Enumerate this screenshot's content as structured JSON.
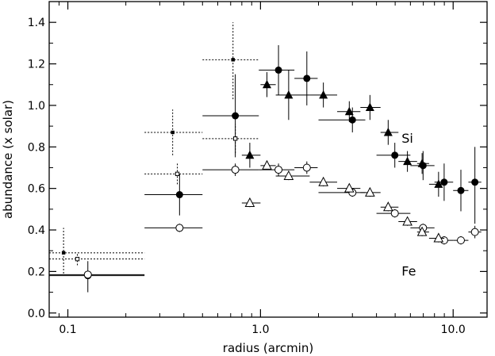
{
  "chart_data": {
    "type": "scatter",
    "xlabel": "radius (arcmin)",
    "ylabel": "abundance  (x solar)",
    "xscale": "log",
    "xlim": [
      0.08,
      15
    ],
    "ylim": [
      -0.02,
      1.5
    ],
    "x_ticks": [
      0.1,
      1.0,
      10.0
    ],
    "x_tick_labels": [
      "0.1",
      "1.0",
      "10.0"
    ],
    "y_ticks": [
      0.0,
      0.2,
      0.4,
      0.6,
      0.8,
      1.0,
      1.2,
      1.4
    ],
    "y_tick_labels": [
      "0.0",
      "0.2",
      "0.4",
      "0.6",
      "0.8",
      "1.0",
      "1.2",
      "1.4"
    ],
    "grid": false,
    "annotations": [
      {
        "text": "Si",
        "x": 5.4,
        "y": 0.82
      },
      {
        "text": "Fe",
        "x": 5.4,
        "y": 0.18
      }
    ],
    "series": [
      {
        "marker": "filled-circle",
        "line": "solid",
        "points": [
          {
            "x": 0.127,
            "y": 0.18,
            "xlo": 0.08,
            "xhi": 0.25,
            "ylo": 0.1,
            "yhi": 0.25
          },
          {
            "x": 0.38,
            "y": 0.57,
            "xlo": 0.25,
            "xhi": 0.5,
            "ylo": 0.47,
            "yhi": 0.67
          },
          {
            "x": 0.74,
            "y": 0.95,
            "xlo": 0.5,
            "xhi": 0.98,
            "ylo": 0.75,
            "yhi": 1.15
          },
          {
            "x": 1.24,
            "y": 1.17,
            "xlo": 0.98,
            "xhi": 1.5,
            "ylo": 1.05,
            "yhi": 1.29
          },
          {
            "x": 1.74,
            "y": 1.13,
            "xlo": 1.5,
            "xhi": 1.98,
            "ylo": 1.0,
            "yhi": 1.26
          },
          {
            "x": 3.0,
            "y": 0.93,
            "xlo": 2.0,
            "xhi": 3.5,
            "ylo": 0.87,
            "yhi": 0.99
          },
          {
            "x": 4.98,
            "y": 0.76,
            "xlo": 4.0,
            "xhi": 6.0,
            "ylo": 0.7,
            "yhi": 0.82
          },
          {
            "x": 6.98,
            "y": 0.71,
            "xlo": 6.0,
            "xhi": 8.0,
            "ylo": 0.64,
            "yhi": 0.78
          },
          {
            "x": 8.98,
            "y": 0.63,
            "xlo": 8.0,
            "xhi": 10.0,
            "ylo": 0.54,
            "yhi": 0.72
          },
          {
            "x": 10.97,
            "y": 0.59,
            "xlo": 10.0,
            "xhi": 12.0,
            "ylo": 0.49,
            "yhi": 0.69
          },
          {
            "x": 12.97,
            "y": 0.63,
            "xlo": 12.0,
            "xhi": 14.0,
            "ylo": 0.43,
            "yhi": 0.8
          }
        ]
      },
      {
        "marker": "filled-triangle",
        "line": "solid",
        "points": [
          {
            "x": 0.88,
            "y": 0.76,
            "xlo": 0.8,
            "xhi": 1.0,
            "ylo": 0.7,
            "yhi": 0.82
          },
          {
            "x": 1.08,
            "y": 1.1,
            "xlo": 1.0,
            "xhi": 1.2,
            "ylo": 1.04,
            "yhi": 1.16
          },
          {
            "x": 1.4,
            "y": 1.05,
            "xlo": 1.2,
            "xhi": 1.8,
            "ylo": 0.93,
            "yhi": 1.17
          },
          {
            "x": 2.12,
            "y": 1.05,
            "xlo": 1.8,
            "xhi": 2.5,
            "ylo": 0.99,
            "yhi": 1.11
          },
          {
            "x": 2.89,
            "y": 0.97,
            "xlo": 2.5,
            "xhi": 3.3,
            "ylo": 0.92,
            "yhi": 1.02
          },
          {
            "x": 3.7,
            "y": 0.99,
            "xlo": 3.3,
            "xhi": 4.2,
            "ylo": 0.93,
            "yhi": 1.05
          },
          {
            "x": 4.6,
            "y": 0.87,
            "xlo": 4.2,
            "xhi": 5.2,
            "ylo": 0.81,
            "yhi": 0.93
          },
          {
            "x": 5.79,
            "y": 0.73,
            "xlo": 5.2,
            "xhi": 6.5,
            "ylo": 0.68,
            "yhi": 0.78
          },
          {
            "x": 6.9,
            "y": 0.72,
            "xlo": 6.5,
            "xhi": 7.5,
            "ylo": 0.67,
            "yhi": 0.77
          },
          {
            "x": 8.4,
            "y": 0.62,
            "xlo": 7.5,
            "xhi": 9.0,
            "ylo": 0.56,
            "yhi": 0.68
          }
        ]
      },
      {
        "marker": "open-circle",
        "line": "solid",
        "points": [
          {
            "x": 0.127,
            "y": 0.185,
            "xlo": 0.08,
            "xhi": 0.25,
            "ylo": 0.17,
            "yhi": 0.2
          },
          {
            "x": 0.38,
            "y": 0.41,
            "xlo": 0.25,
            "xhi": 0.5,
            "ylo": 0.39,
            "yhi": 0.43
          },
          {
            "x": 0.74,
            "y": 0.69,
            "xlo": 0.5,
            "xhi": 0.98,
            "ylo": 0.66,
            "yhi": 0.72
          },
          {
            "x": 1.24,
            "y": 0.69,
            "xlo": 0.98,
            "xhi": 1.5,
            "ylo": 0.66,
            "yhi": 0.72
          },
          {
            "x": 1.74,
            "y": 0.7,
            "xlo": 1.5,
            "xhi": 1.98,
            "ylo": 0.67,
            "yhi": 0.73
          },
          {
            "x": 3.0,
            "y": 0.58,
            "xlo": 2.0,
            "xhi": 3.5,
            "ylo": 0.56,
            "yhi": 0.6
          },
          {
            "x": 4.98,
            "y": 0.48,
            "xlo": 4.0,
            "xhi": 6.0,
            "ylo": 0.46,
            "yhi": 0.5
          },
          {
            "x": 6.98,
            "y": 0.41,
            "xlo": 6.0,
            "xhi": 8.0,
            "ylo": 0.39,
            "yhi": 0.43
          },
          {
            "x": 8.98,
            "y": 0.35,
            "xlo": 8.0,
            "xhi": 10.0,
            "ylo": 0.33,
            "yhi": 0.37
          },
          {
            "x": 10.97,
            "y": 0.35,
            "xlo": 10.0,
            "xhi": 12.0,
            "ylo": 0.33,
            "yhi": 0.37
          },
          {
            "x": 12.97,
            "y": 0.39,
            "xlo": 12.0,
            "xhi": 14.0,
            "ylo": 0.36,
            "yhi": 0.42
          }
        ]
      },
      {
        "marker": "open-triangle",
        "line": "solid",
        "points": [
          {
            "x": 0.88,
            "y": 0.53,
            "xlo": 0.8,
            "xhi": 1.0,
            "ylo": 0.51,
            "yhi": 0.55
          },
          {
            "x": 1.08,
            "y": 0.71,
            "xlo": 1.0,
            "xhi": 1.2,
            "ylo": 0.69,
            "yhi": 0.73
          },
          {
            "x": 1.4,
            "y": 0.66,
            "xlo": 1.2,
            "xhi": 1.8,
            "ylo": 0.64,
            "yhi": 0.68
          },
          {
            "x": 2.12,
            "y": 0.63,
            "xlo": 1.8,
            "xhi": 2.5,
            "ylo": 0.61,
            "yhi": 0.65
          },
          {
            "x": 2.89,
            "y": 0.6,
            "xlo": 2.5,
            "xhi": 3.3,
            "ylo": 0.58,
            "yhi": 0.62
          },
          {
            "x": 3.7,
            "y": 0.58,
            "xlo": 3.3,
            "xhi": 4.2,
            "ylo": 0.56,
            "yhi": 0.6
          },
          {
            "x": 4.6,
            "y": 0.51,
            "xlo": 4.2,
            "xhi": 5.2,
            "ylo": 0.49,
            "yhi": 0.53
          },
          {
            "x": 5.79,
            "y": 0.44,
            "xlo": 5.2,
            "xhi": 6.5,
            "ylo": 0.42,
            "yhi": 0.46
          },
          {
            "x": 6.9,
            "y": 0.39,
            "xlo": 6.5,
            "xhi": 7.5,
            "ylo": 0.37,
            "yhi": 0.41
          },
          {
            "x": 8.4,
            "y": 0.36,
            "xlo": 7.5,
            "xhi": 9.0,
            "ylo": 0.34,
            "yhi": 0.38
          }
        ]
      },
      {
        "marker": "filled-square-small",
        "line": "dotted",
        "points": [
          {
            "x": 0.095,
            "y": 0.29,
            "xlo": 0.08,
            "xhi": 0.25,
            "ylo": 0.19,
            "yhi": 0.41
          },
          {
            "x": 0.35,
            "y": 0.87,
            "xlo": 0.25,
            "xhi": 0.5,
            "ylo": 0.76,
            "yhi": 0.98
          },
          {
            "x": 0.72,
            "y": 1.22,
            "xlo": 0.5,
            "xhi": 0.98,
            "ylo": 1.03,
            "yhi": 1.4
          }
        ]
      },
      {
        "marker": "open-square-small",
        "line": "dotted",
        "points": [
          {
            "x": 0.112,
            "y": 0.26,
            "xlo": 0.08,
            "xhi": 0.25,
            "ylo": 0.23,
            "yhi": 0.29
          },
          {
            "x": 0.37,
            "y": 0.67,
            "xlo": 0.25,
            "xhi": 0.5,
            "ylo": 0.62,
            "yhi": 0.72
          },
          {
            "x": 0.74,
            "y": 0.84,
            "xlo": 0.5,
            "xhi": 0.98,
            "ylo": 0.77,
            "yhi": 0.91
          }
        ]
      }
    ]
  }
}
